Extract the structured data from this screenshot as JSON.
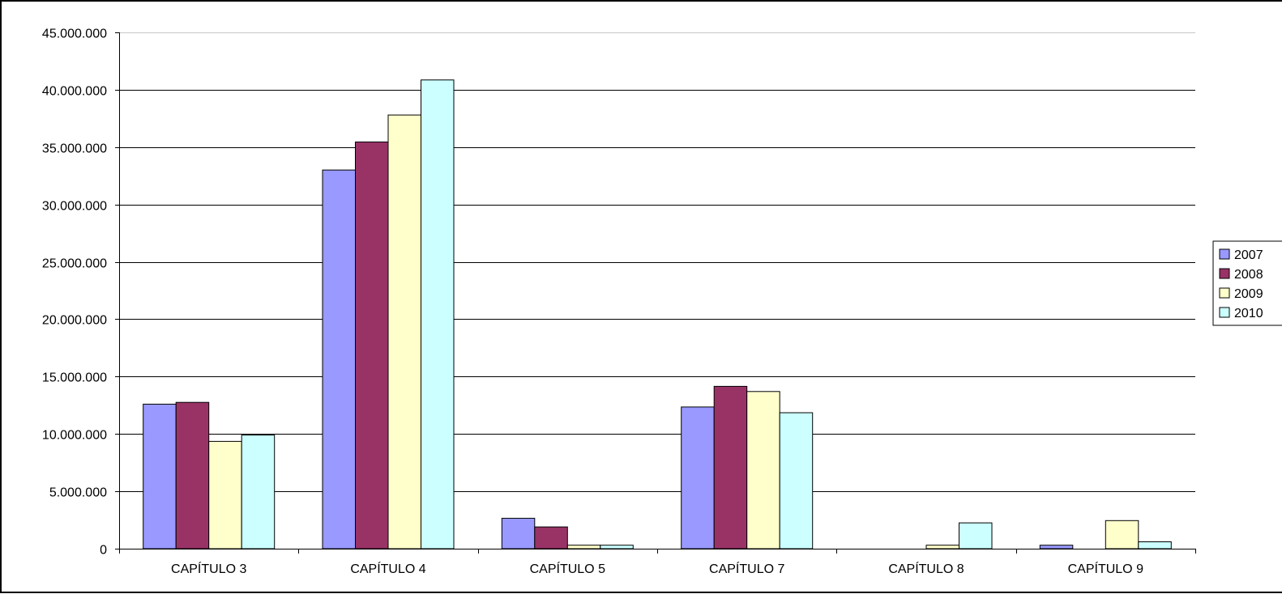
{
  "chart_data": {
    "type": "bar",
    "title": "",
    "xlabel": "",
    "ylabel": "",
    "categories": [
      "CAPÍTULO 3",
      "CAPÍTULO 4",
      "CAPÍTULO 5",
      "CAPÍTULO 7",
      "CAPÍTULO 8",
      "CAPÍTULO 9"
    ],
    "ylim": [
      0,
      45000000
    ],
    "yticks": [
      0,
      5000000,
      10000000,
      15000000,
      20000000,
      25000000,
      30000000,
      35000000,
      40000000,
      45000000
    ],
    "ytick_labels": [
      "0",
      "5.000.000",
      "10.000.000",
      "15.000.000",
      "20.000.000",
      "25.000.000",
      "30.000.000",
      "35.000.000",
      "40.000.000",
      "45.000.000"
    ],
    "grid": true,
    "legend_position": "right",
    "series": [
      {
        "name": "2007",
        "color": "#9999ff",
        "values": [
          12600000,
          33000000,
          2650000,
          12350000,
          0,
          300000
        ]
      },
      {
        "name": "2008",
        "color": "#993366",
        "values": [
          12750000,
          35450000,
          1900000,
          14150000,
          0,
          0
        ]
      },
      {
        "name": "2009",
        "color": "#ffffcc",
        "values": [
          9350000,
          37800000,
          300000,
          13700000,
          300000,
          2450000
        ]
      },
      {
        "name": "2010",
        "color": "#ccffff",
        "values": [
          9900000,
          40850000,
          300000,
          11850000,
          2250000,
          600000
        ]
      }
    ]
  }
}
